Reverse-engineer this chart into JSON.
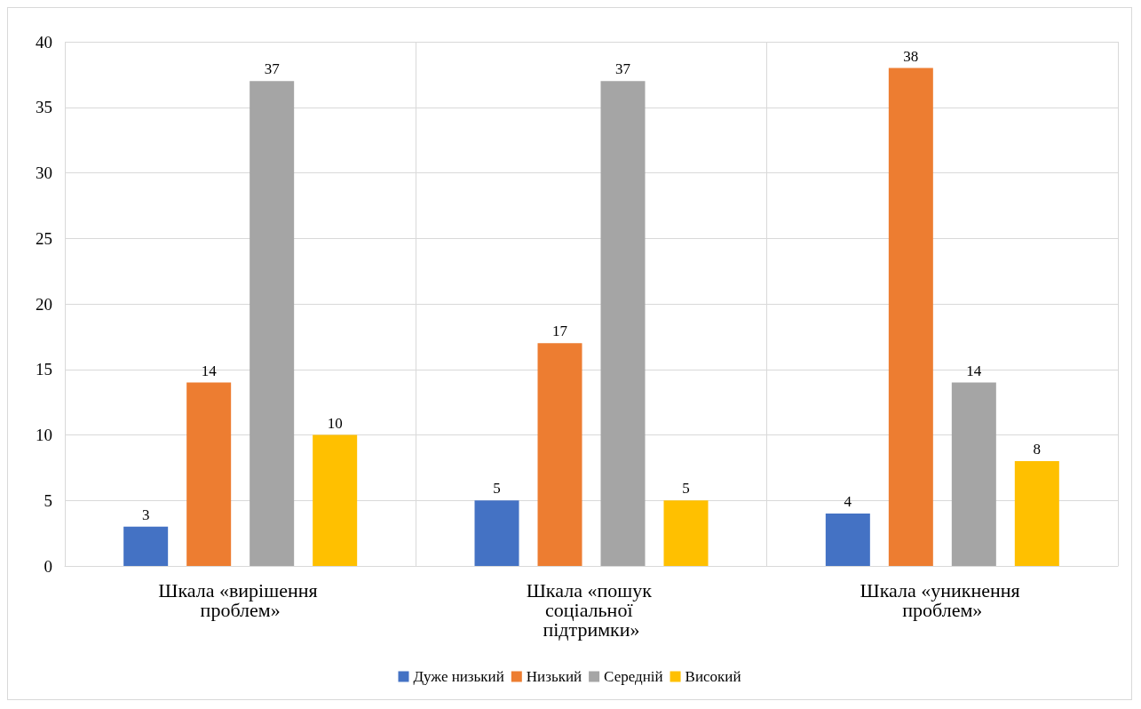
{
  "chart_data": {
    "type": "bar",
    "categories": [
      "Шкала «вирішення проблем»",
      "Шкала «пошук соціальної підтримки»",
      "Шкала «уникнення проблем»"
    ],
    "series": [
      {
        "name": "Дуже низький",
        "color": "#4472c4",
        "values": [
          3,
          5,
          4
        ]
      },
      {
        "name": "Низький",
        "color": "#ed7d31",
        "values": [
          14,
          17,
          38
        ]
      },
      {
        "name": "Середній",
        "color": "#a5a5a5",
        "values": [
          37,
          37,
          14
        ]
      },
      {
        "name": "Високий",
        "color": "#ffc000",
        "values": [
          10,
          5,
          8
        ]
      }
    ],
    "ylim": [
      0,
      40
    ],
    "yticks": [
      0,
      5,
      10,
      15,
      20,
      25,
      30,
      35,
      40
    ],
    "grid": true,
    "legend": "bottom",
    "data_labels": true
  }
}
